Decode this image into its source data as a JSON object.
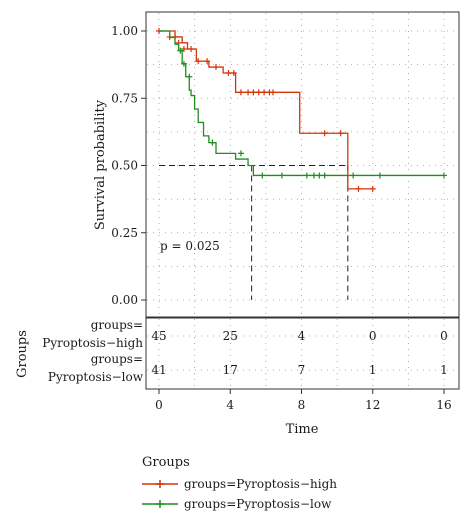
{
  "chart_data": {
    "type": "line",
    "subtype": "kaplan-meier",
    "title": "",
    "xlabel": "Time",
    "ylabel": "Survival probability",
    "xlim": [
      0,
      16
    ],
    "ylim": [
      0,
      1
    ],
    "x_ticks": [
      "0",
      "4",
      "8",
      "12",
      "16"
    ],
    "y_ticks": [
      "0.00",
      "0.25",
      "0.50",
      "0.75",
      "1.00"
    ],
    "grid": true,
    "annotation": "p = 0.025",
    "median_line_y": 0.5,
    "medians": [
      10.6,
      5.2
    ],
    "series": [
      {
        "name": "groups=Pyroptosis−high",
        "color": "#d4350b",
        "steps": [
          [
            0,
            1.0
          ],
          [
            0.9,
            0.978
          ],
          [
            1.3,
            0.956
          ],
          [
            1.6,
            0.933
          ],
          [
            2.1,
            0.888
          ],
          [
            2.8,
            0.866
          ],
          [
            3.6,
            0.844
          ],
          [
            4.3,
            0.772
          ],
          [
            7.9,
            0.62
          ],
          [
            10.6,
            0.413
          ],
          [
            12,
            0.413
          ]
        ],
        "censors": [
          [
            0,
            1.0
          ],
          [
            0.6,
            0.978
          ],
          [
            0.9,
            0.978
          ],
          [
            1.1,
            0.956
          ],
          [
            1.4,
            0.933
          ],
          [
            1.8,
            0.933
          ],
          [
            2.2,
            0.888
          ],
          [
            2.7,
            0.888
          ],
          [
            3.2,
            0.866
          ],
          [
            3.9,
            0.844
          ],
          [
            4.2,
            0.844
          ],
          [
            4.6,
            0.772
          ],
          [
            5.0,
            0.772
          ],
          [
            5.3,
            0.772
          ],
          [
            5.6,
            0.772
          ],
          [
            5.9,
            0.772
          ],
          [
            6.2,
            0.772
          ],
          [
            6.4,
            0.772
          ],
          [
            9.3,
            0.62
          ],
          [
            10.2,
            0.62
          ],
          [
            11.2,
            0.413
          ],
          [
            12,
            0.413
          ]
        ]
      },
      {
        "name": "groups=Pyroptosis−low",
        "color": "#1f8e1f",
        "steps": [
          [
            0,
            1.0
          ],
          [
            0.6,
            0.976
          ],
          [
            0.9,
            0.951
          ],
          [
            1.1,
            0.927
          ],
          [
            1.3,
            0.878
          ],
          [
            1.5,
            0.83
          ],
          [
            1.7,
            0.78
          ],
          [
            1.8,
            0.76
          ],
          [
            2.0,
            0.71
          ],
          [
            2.2,
            0.66
          ],
          [
            2.5,
            0.61
          ],
          [
            2.8,
            0.585
          ],
          [
            3.2,
            0.545
          ],
          [
            4.3,
            0.524
          ],
          [
            5.0,
            0.5
          ],
          [
            5.3,
            0.463
          ],
          [
            16,
            0.463
          ]
        ],
        "censors": [
          [
            1.2,
            0.927
          ],
          [
            1.4,
            0.878
          ],
          [
            1.7,
            0.83
          ],
          [
            3.0,
            0.585
          ],
          [
            4.6,
            0.545
          ],
          [
            5.8,
            0.463
          ],
          [
            6.9,
            0.463
          ],
          [
            8.3,
            0.463
          ],
          [
            8.7,
            0.463
          ],
          [
            9.0,
            0.463
          ],
          [
            9.3,
            0.463
          ],
          [
            10.9,
            0.463
          ],
          [
            12.4,
            0.463
          ],
          [
            16,
            0.463
          ]
        ]
      }
    ]
  },
  "risk_table": {
    "y_axis_label": "Groups",
    "time_points": [
      0,
      4,
      8,
      12,
      16
    ],
    "rows": [
      {
        "label_line1": "groups=",
        "label_line2": "Pyroptosis−high",
        "color": "#d4350b",
        "counts": [
          "45",
          "25",
          "4",
          "0",
          "0"
        ]
      },
      {
        "label_line1": "groups=",
        "label_line2": "Pyroptosis−low",
        "color": "#1f8e1f",
        "counts": [
          "41",
          "17",
          "7",
          "1",
          "1"
        ]
      }
    ]
  },
  "legend": {
    "title": "Groups",
    "items": [
      {
        "label": "groups=Pyroptosis−high",
        "color": "#d4350b"
      },
      {
        "label": "groups=Pyroptosis−low",
        "color": "#1f8e1f"
      }
    ]
  }
}
